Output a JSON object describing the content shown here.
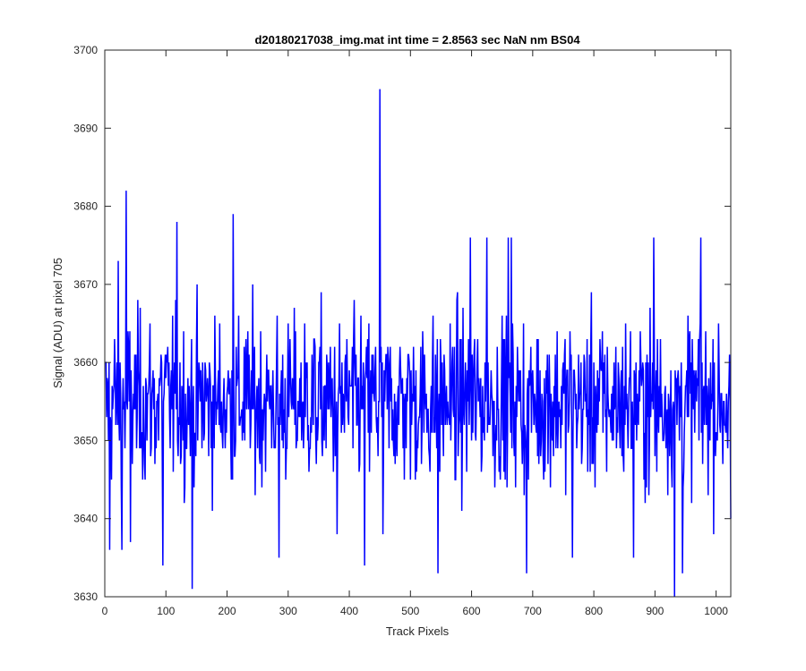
{
  "chart_data": {
    "type": "line",
    "title": "d20180217038_img.mat int time = 2.8563 sec  NaN nm BS04",
    "xlabel": "Track Pixels",
    "ylabel": "Signal (ADU) at pixel 705",
    "xlim": [
      0,
      1024
    ],
    "ylim": [
      3630,
      3700
    ],
    "xticks": [
      0,
      100,
      200,
      300,
      400,
      500,
      600,
      700,
      800,
      900,
      1000
    ],
    "yticks": [
      3630,
      3640,
      3650,
      3660,
      3670,
      3680,
      3690,
      3700
    ],
    "grid": false,
    "legend": "none",
    "series": [
      {
        "color": "#0000ff",
        "noise": {
          "x_start": 1,
          "x_end": 1024,
          "mean": 3655,
          "spread": 6,
          "min": 3630,
          "max": 3682
        },
        "points": [
          {
            "x": 1,
            "y": 3660
          },
          {
            "x": 8,
            "y": 3636
          },
          {
            "x": 22,
            "y": 3673
          },
          {
            "x": 28,
            "y": 3636
          },
          {
            "x": 35,
            "y": 3682
          },
          {
            "x": 42,
            "y": 3637
          },
          {
            "x": 95,
            "y": 3634
          },
          {
            "x": 118,
            "y": 3678
          },
          {
            "x": 143,
            "y": 3631
          },
          {
            "x": 210,
            "y": 3679
          },
          {
            "x": 285,
            "y": 3635
          },
          {
            "x": 380,
            "y": 3638
          },
          {
            "x": 425,
            "y": 3634
          },
          {
            "x": 450,
            "y": 3695
          },
          {
            "x": 455,
            "y": 3638
          },
          {
            "x": 545,
            "y": 3633
          },
          {
            "x": 598,
            "y": 3676
          },
          {
            "x": 625,
            "y": 3676
          },
          {
            "x": 660,
            "y": 3676
          },
          {
            "x": 665,
            "y": 3676
          },
          {
            "x": 690,
            "y": 3633
          },
          {
            "x": 765,
            "y": 3635
          },
          {
            "x": 865,
            "y": 3635
          },
          {
            "x": 898,
            "y": 3676
          },
          {
            "x": 932,
            "y": 3630
          },
          {
            "x": 945,
            "y": 3633
          },
          {
            "x": 975,
            "y": 3676
          },
          {
            "x": 1024,
            "y": 3640
          }
        ]
      }
    ]
  }
}
